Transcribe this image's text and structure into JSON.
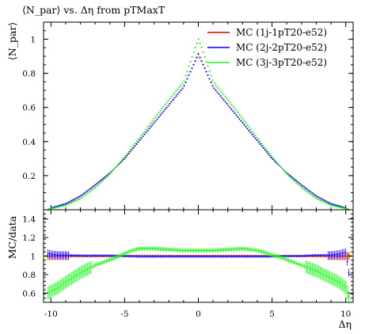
{
  "chart_data": [
    {
      "type": "scatter",
      "panel": "main",
      "title": "⟨N_par⟩ vs. Δη from pTMaxT",
      "ylabel": "⟨N_par⟩",
      "xlabel": "",
      "xlim": [
        -10.5,
        10.5
      ],
      "ylim": [
        0,
        1.1
      ],
      "xticks": [
        -10,
        -5,
        0,
        5,
        10
      ],
      "yticks": [
        0.2,
        0.4,
        0.6,
        0.8,
        1
      ],
      "grid": false,
      "legend_position": "top-right",
      "series": [
        {
          "name": "MC (1j-1pT20-e52)",
          "color": "#cc0000",
          "x": [
            -10.2,
            -10,
            -9,
            -8,
            -7,
            -6,
            -5,
            -4,
            -3,
            -2,
            -1,
            0,
            1,
            2,
            3,
            4,
            5,
            6,
            7,
            8,
            9,
            10,
            10.2
          ],
          "y": [
            0.0,
            0.01,
            0.035,
            0.08,
            0.145,
            0.215,
            0.3,
            0.405,
            0.51,
            0.615,
            0.72,
            0.915,
            0.72,
            0.615,
            0.51,
            0.405,
            0.3,
            0.215,
            0.145,
            0.08,
            0.035,
            0.01,
            0.0
          ]
        },
        {
          "name": "MC (2j-2pT20-e52)",
          "color": "#0000ee",
          "x": [
            -10.2,
            -10,
            -9,
            -8,
            -7,
            -6,
            -5,
            -4,
            -3,
            -2,
            -1,
            0,
            1,
            2,
            3,
            4,
            5,
            6,
            7,
            8,
            9,
            10,
            10.2
          ],
          "y": [
            0.0,
            0.01,
            0.035,
            0.08,
            0.145,
            0.215,
            0.3,
            0.405,
            0.51,
            0.615,
            0.72,
            0.912,
            0.72,
            0.615,
            0.51,
            0.405,
            0.3,
            0.215,
            0.145,
            0.08,
            0.035,
            0.01,
            0.0
          ]
        },
        {
          "name": "MC (3j-3pT20-e52)",
          "color": "#22ee22",
          "x": [
            -10.2,
            -10,
            -9,
            -8,
            -7,
            -6,
            -5,
            -4,
            -3,
            -2,
            -1,
            -0.2,
            0,
            0.2,
            1,
            2,
            3,
            4,
            5,
            6,
            7,
            8,
            9,
            10,
            10.2
          ],
          "y": [
            0.0,
            0.006,
            0.026,
            0.066,
            0.13,
            0.21,
            0.31,
            0.42,
            0.535,
            0.645,
            0.75,
            0.955,
            1.0,
            0.955,
            0.75,
            0.645,
            0.535,
            0.42,
            0.31,
            0.21,
            0.13,
            0.066,
            0.026,
            0.006,
            0.0
          ]
        }
      ]
    },
    {
      "type": "scatter",
      "panel": "ratio",
      "title": "",
      "ylabel": "MC/data",
      "xlabel": "Δη",
      "xlim": [
        -10.5,
        10.5
      ],
      "ylim": [
        0.5,
        1.5
      ],
      "xticks": [
        -10,
        -5,
        0,
        5,
        10
      ],
      "yticks": [
        0.6,
        0.8,
        1,
        1.2,
        1.4
      ],
      "grid": false,
      "reference_band_color": "#ffdd00",
      "series": [
        {
          "name": "MC (1j-1pT20-e52)",
          "color": "#cc0000",
          "x": [
            -10.2,
            -9,
            -8,
            -6,
            -4,
            -2,
            0,
            2,
            4,
            6,
            8,
            9,
            10.2
          ],
          "y": [
            1.0,
            1.0,
            1.0,
            1.0,
            1.0,
            1.0,
            1.0,
            1.0,
            1.0,
            1.0,
            1.0,
            1.0,
            1.0
          ]
        },
        {
          "name": "MC (2j-2pT20-e52)",
          "color": "#0000ee",
          "x": [
            -10.2,
            -10,
            -9.5,
            -9,
            -8,
            -7,
            -6,
            -5,
            -4,
            -3,
            -2,
            -1,
            0,
            1,
            2,
            3,
            4,
            5,
            6,
            7,
            8,
            9,
            9.5,
            10,
            10.2
          ],
          "y": [
            1.03,
            1.02,
            1.01,
            1.01,
            1.005,
            1.005,
            1.005,
            1.0,
            0.995,
            0.995,
            0.995,
            0.995,
            0.995,
            0.995,
            0.995,
            0.995,
            0.995,
            0.995,
            1.0,
            1.0,
            1.01,
            1.01,
            1.02,
            1.04,
            0.82
          ]
        },
        {
          "name": "MC (3j-3pT20-e52)",
          "color": "#22ee22",
          "x": [
            -10.2,
            -10,
            -9.5,
            -9,
            -8.5,
            -8,
            -7.5,
            -7,
            -6.5,
            -6,
            -5.5,
            -5,
            -4.5,
            -4,
            -3,
            -2,
            -1,
            0,
            1,
            2,
            3,
            4,
            4.5,
            5,
            5.5,
            6,
            6.5,
            7,
            7.5,
            8,
            8.5,
            9,
            9.5,
            10,
            10.2
          ],
          "y": [
            0.6,
            0.62,
            0.66,
            0.72,
            0.77,
            0.82,
            0.86,
            0.9,
            0.93,
            0.96,
            0.99,
            1.03,
            1.06,
            1.08,
            1.08,
            1.07,
            1.06,
            1.06,
            1.06,
            1.07,
            1.08,
            1.06,
            1.04,
            1.01,
            0.99,
            0.96,
            0.93,
            0.9,
            0.87,
            0.84,
            0.8,
            0.76,
            0.72,
            0.66,
            0.55
          ]
        }
      ]
    }
  ]
}
